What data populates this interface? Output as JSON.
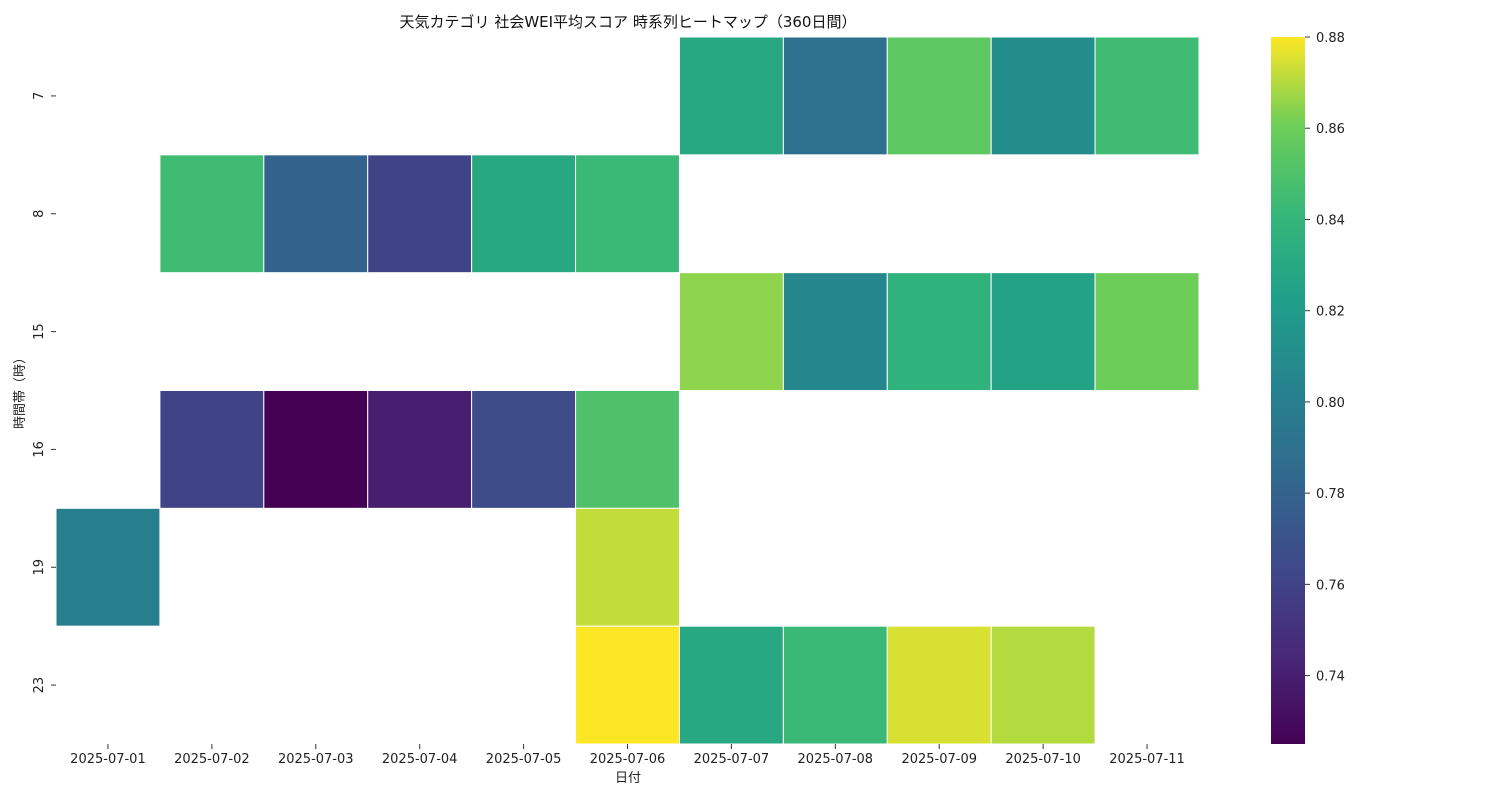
{
  "chart_data": {
    "type": "heatmap",
    "title": "天気カテゴリ 社会WEI平均スコア 時系列ヒートマップ（360日間）",
    "xlabel": "日付",
    "ylabel": "時間帯（時）",
    "x_categories": [
      "2025-07-01",
      "2025-07-02",
      "2025-07-03",
      "2025-07-04",
      "2025-07-05",
      "2025-07-06",
      "2025-07-07",
      "2025-07-08",
      "2025-07-09",
      "2025-07-10",
      "2025-07-11"
    ],
    "y_categories": [
      "7",
      "8",
      "15",
      "16",
      "19",
      "23"
    ],
    "values": [
      [
        null,
        null,
        null,
        null,
        null,
        null,
        0.83,
        0.79,
        0.855,
        0.81,
        0.845
      ],
      [
        null,
        0.845,
        0.78,
        0.76,
        0.83,
        0.843,
        null,
        null,
        null,
        null,
        null
      ],
      [
        null,
        null,
        null,
        null,
        null,
        null,
        0.865,
        0.805,
        0.837,
        0.825,
        0.86
      ],
      [
        null,
        0.76,
        0.725,
        0.74,
        0.765,
        0.85,
        null,
        null,
        null,
        null,
        null
      ],
      [
        0.8,
        null,
        null,
        null,
        null,
        0.872,
        null,
        null,
        null,
        null,
        null
      ],
      [
        null,
        null,
        null,
        null,
        null,
        0.88,
        0.83,
        0.843,
        0.875,
        0.87,
        null
      ]
    ],
    "colorbar": {
      "colormap": "viridis",
      "vmin": 0.725,
      "vmax": 0.88,
      "ticks": [
        "0.74",
        "0.76",
        "0.78",
        "0.80",
        "0.82",
        "0.84",
        "0.86",
        "0.88"
      ]
    }
  }
}
